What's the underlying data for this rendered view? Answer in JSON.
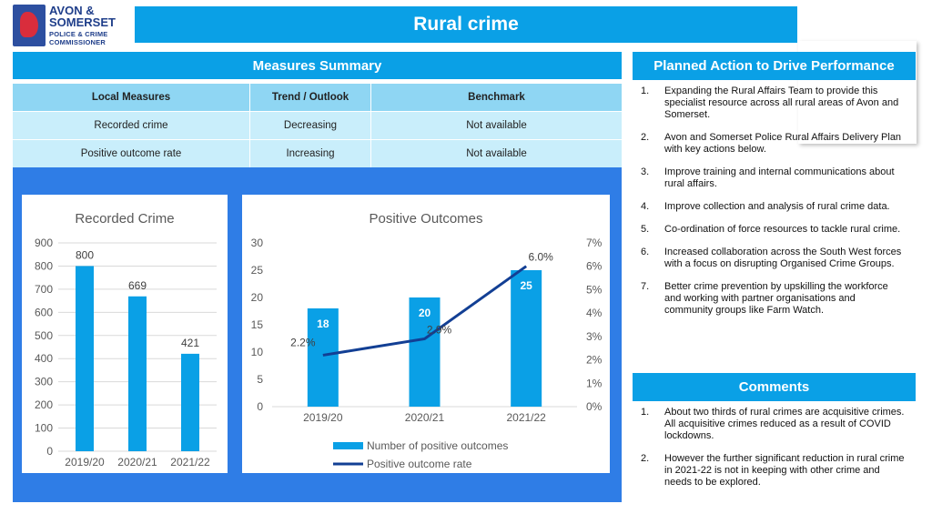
{
  "logo": {
    "line1": "AVON &",
    "line2": "SOMERSET",
    "line3": "POLICE & CRIME",
    "line4": "COMMISSIONER"
  },
  "title": "Rural crime",
  "measures": {
    "heading": "Measures Summary",
    "columns": [
      "Local Measures",
      "Trend / Outlook",
      "Benchmark"
    ],
    "rows": [
      [
        "Recorded crime",
        "Decreasing",
        "Not available"
      ],
      [
        "Positive outcome rate",
        "Increasing",
        "Not available"
      ]
    ]
  },
  "plan": {
    "heading": "Planned Action to Drive Performance",
    "items": [
      {
        "num": "1.",
        "text": "Expanding the Rural Affairs Team to provide this specialist resource across all rural areas of Avon and Somerset."
      },
      {
        "num": "2.",
        "text": "Avon and Somerset Police Rural Affairs Delivery Plan with key actions below."
      },
      {
        "num": "3.",
        "text": "Improve training and internal communications about rural affairs."
      },
      {
        "num": "4.",
        "text": "Improve collection and analysis of rural crime data."
      },
      {
        "num": "5.",
        "text": "Co-ordination of force resources to tackle rural crime."
      },
      {
        "num": "6.",
        "text": "Increased collaboration across the South West forces with a focus on disrupting Organised Crime Groups."
      },
      {
        "num": "7.",
        "text": "Better crime prevention by upskilling the workforce and working with partner organisations and community groups like Farm Watch."
      }
    ]
  },
  "comments": {
    "heading": "Comments",
    "items": [
      {
        "num": "1.",
        "text": "About two thirds of rural crimes are acquisitive crimes. All acquisitive crimes reduced as a result of COVID lockdowns."
      },
      {
        "num": "2.",
        "text": "However the further significant reduction in rural crime in 2021-22 is not in keeping with other crime and needs to be explored."
      }
    ]
  },
  "colors": {
    "accent": "#0aa0e6",
    "panel": "#2f7de6",
    "bar": "#0aa0e6",
    "line": "#123f94"
  },
  "chart_data": [
    {
      "type": "bar",
      "title": "Recorded Crime",
      "categories": [
        "2019/20",
        "2020/21",
        "2021/22"
      ],
      "values": [
        800,
        669,
        421
      ],
      "ylim": [
        0,
        900
      ],
      "yticks": [
        0,
        100,
        200,
        300,
        400,
        500,
        600,
        700,
        800,
        900
      ],
      "grid": true,
      "data_labels": [
        "800",
        "669",
        "421"
      ]
    },
    {
      "type": "bar",
      "title": "Positive Outcomes",
      "categories": [
        "2019/20",
        "2020/21",
        "2021/22"
      ],
      "series": [
        {
          "name": "Number of positive outcomes",
          "type": "bar",
          "axis": "left",
          "values": [
            18,
            20,
            25
          ],
          "labels": [
            "18",
            "20",
            "25"
          ]
        },
        {
          "name": "Positive outcome rate",
          "type": "line",
          "axis": "right",
          "values": [
            2.2,
            2.9,
            6.0
          ],
          "labels": [
            "2.2%",
            "2.9%",
            "6.0%"
          ]
        }
      ],
      "ylim": [
        0,
        30
      ],
      "yticks": [
        0,
        5,
        10,
        15,
        20,
        25,
        30
      ],
      "y2lim": [
        0,
        7
      ],
      "y2ticks": [
        "0%",
        "1%",
        "2%",
        "3%",
        "4%",
        "5%",
        "6%",
        "7%"
      ],
      "grid": false,
      "legend": "bottom"
    }
  ]
}
